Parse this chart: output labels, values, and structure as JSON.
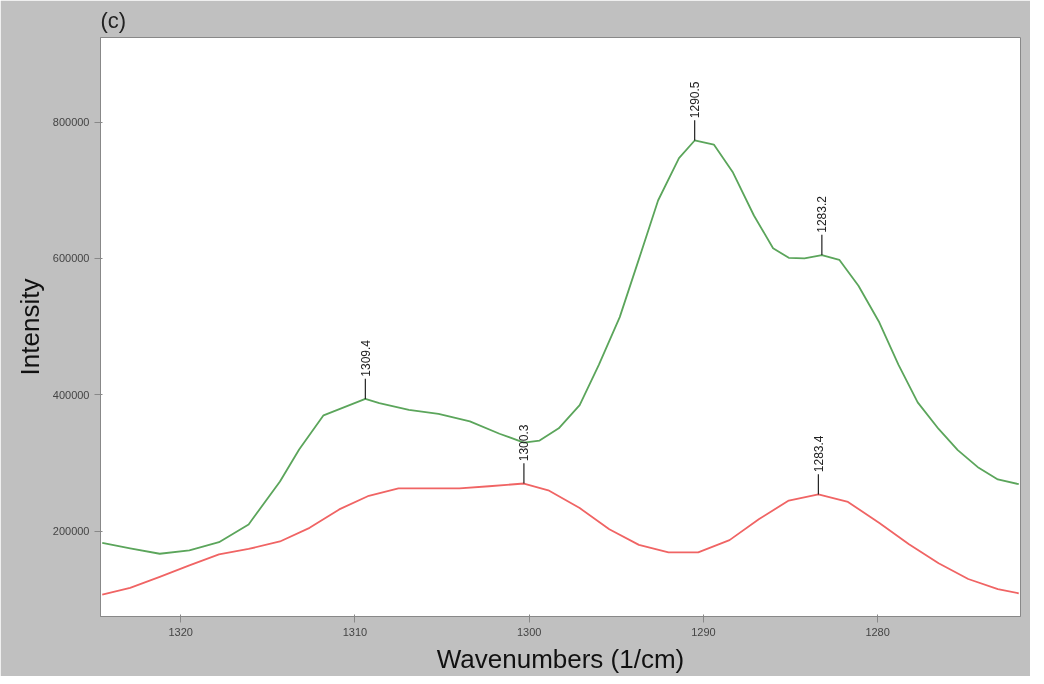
{
  "chart_data": {
    "type": "line",
    "title": "(c)",
    "xlabel": "Wavenumbers (1/cm)",
    "ylabel": "Intensity",
    "xlim": [
      1324.6,
      1271.8
    ],
    "ylim": [
      75000,
      924000
    ],
    "xticks": [
      1320,
      1310,
      1300,
      1290,
      1280
    ],
    "yticks": [
      200000,
      400000,
      600000,
      800000
    ],
    "grid": false,
    "marker": "none",
    "line_style": "solid",
    "series": [
      {
        "color": "#5ba55b",
        "x": [
          1324.5,
          1322.9,
          1321.2,
          1319.5,
          1317.8,
          1316.1,
          1314.3,
          1313.2,
          1311.8,
          1309.4,
          1308.6,
          1306.9,
          1305.2,
          1303.4,
          1301.7,
          1300.3,
          1299.4,
          1298.3,
          1297.1,
          1296.0,
          1294.8,
          1293.7,
          1292.6,
          1291.4,
          1290.5,
          1289.4,
          1288.3,
          1287.1,
          1286.0,
          1285.1,
          1284.2,
          1283.2,
          1282.2,
          1281.1,
          1279.9,
          1278.8,
          1277.7,
          1276.5,
          1275.4,
          1274.2,
          1273.1,
          1271.9
        ],
        "values": [
          183000,
          175000,
          167000,
          172000,
          184000,
          210000,
          273000,
          320000,
          370000,
          394000,
          388000,
          378000,
          372000,
          361000,
          343000,
          330000,
          333000,
          351000,
          385000,
          444000,
          514000,
          599000,
          685000,
          747000,
          773000,
          767000,
          726000,
          663000,
          615000,
          601000,
          600000,
          605000,
          598000,
          560000,
          506000,
          444000,
          389000,
          350000,
          319000,
          293000,
          276000,
          269000
        ]
      },
      {
        "color": "#f06464",
        "x": [
          1324.5,
          1322.9,
          1321.2,
          1319.5,
          1317.8,
          1316.1,
          1314.3,
          1312.6,
          1310.9,
          1309.2,
          1307.5,
          1305.7,
          1304.0,
          1302.3,
          1300.3,
          1298.9,
          1297.1,
          1295.4,
          1293.7,
          1292.0,
          1290.3,
          1288.5,
          1286.8,
          1285.1,
          1283.4,
          1281.7,
          1279.9,
          1278.2,
          1276.5,
          1274.8,
          1273.1,
          1271.9
        ],
        "values": [
          107000,
          117000,
          133000,
          150000,
          166000,
          174000,
          185000,
          205000,
          232000,
          252000,
          263000,
          263000,
          263000,
          266000,
          270000,
          260000,
          234000,
          203000,
          180000,
          169000,
          169000,
          187000,
          218000,
          245000,
          254000,
          243000,
          212000,
          181000,
          153000,
          130000,
          115000,
          109000
        ]
      }
    ],
    "annotations": [
      {
        "text": "1309.4",
        "x": 1309.4,
        "y": 394000
      },
      {
        "text": "1300.3",
        "x": 1300.3,
        "y": 270000
      },
      {
        "text": "1290.5",
        "x": 1290.5,
        "y": 773000
      },
      {
        "text": "1283.2",
        "x": 1283.2,
        "y": 605000
      },
      {
        "text": "1283.4",
        "x": 1283.4,
        "y": 254000
      }
    ]
  }
}
